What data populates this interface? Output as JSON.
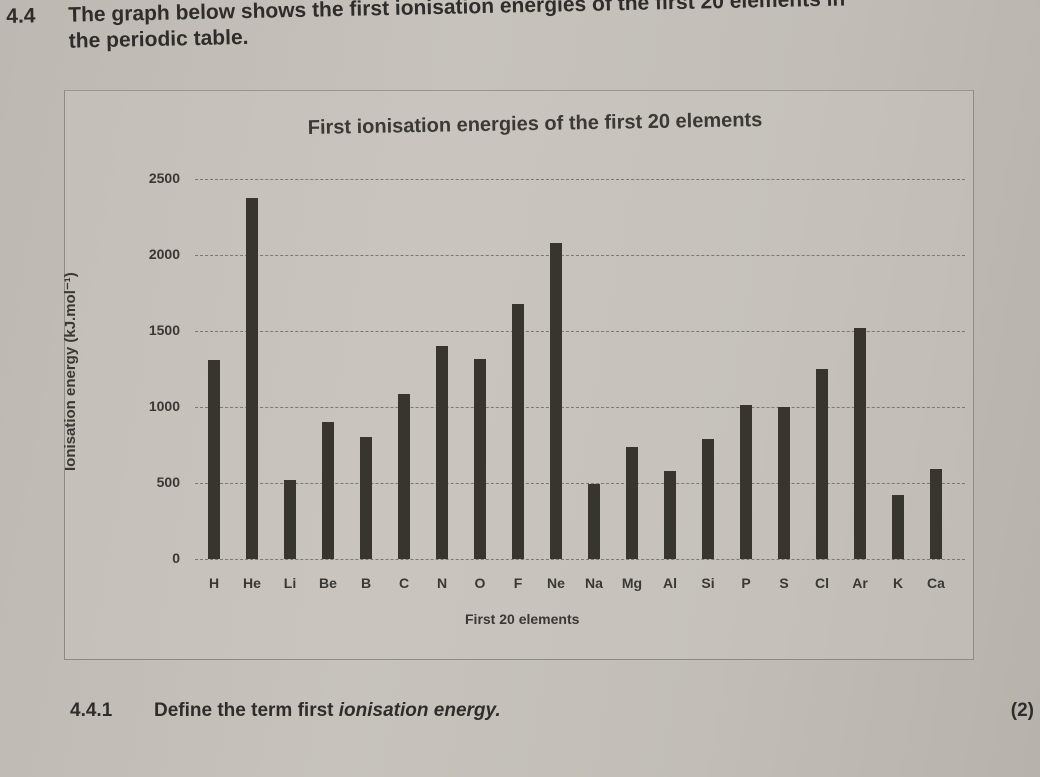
{
  "question": {
    "number": "4.4",
    "text_line1": "The graph below shows the first ionisation energies of the first 20 elements in",
    "text_line2": "the periodic table."
  },
  "sub_question": {
    "number": "4.4.1",
    "text_plain": "Define the term first ",
    "text_italic": "ionisation energy.",
    "marks": "(2)"
  },
  "chart_data": {
    "type": "bar",
    "title": "First ionisation energies of the first 20 elements",
    "xlabel": "First 20 elements",
    "ylabel": "Ionisation energy (kJ.mol⁻¹)",
    "ylim": [
      0,
      2500
    ],
    "yticks": [
      "0",
      "500",
      "1000",
      "1500",
      "2000",
      "2500"
    ],
    "grid": true,
    "legend": null,
    "categories": [
      "H",
      "He",
      "Li",
      "Be",
      "B",
      "C",
      "N",
      "O",
      "F",
      "Ne",
      "Na",
      "Mg",
      "Al",
      "Si",
      "P",
      "S",
      "Cl",
      "Ar",
      "K",
      "Ca"
    ],
    "values": [
      1312,
      2372,
      520,
      900,
      801,
      1086,
      1402,
      1314,
      1681,
      2081,
      496,
      738,
      578,
      787,
      1012,
      1000,
      1251,
      1521,
      419,
      590
    ],
    "bar_color": "#38352f"
  }
}
